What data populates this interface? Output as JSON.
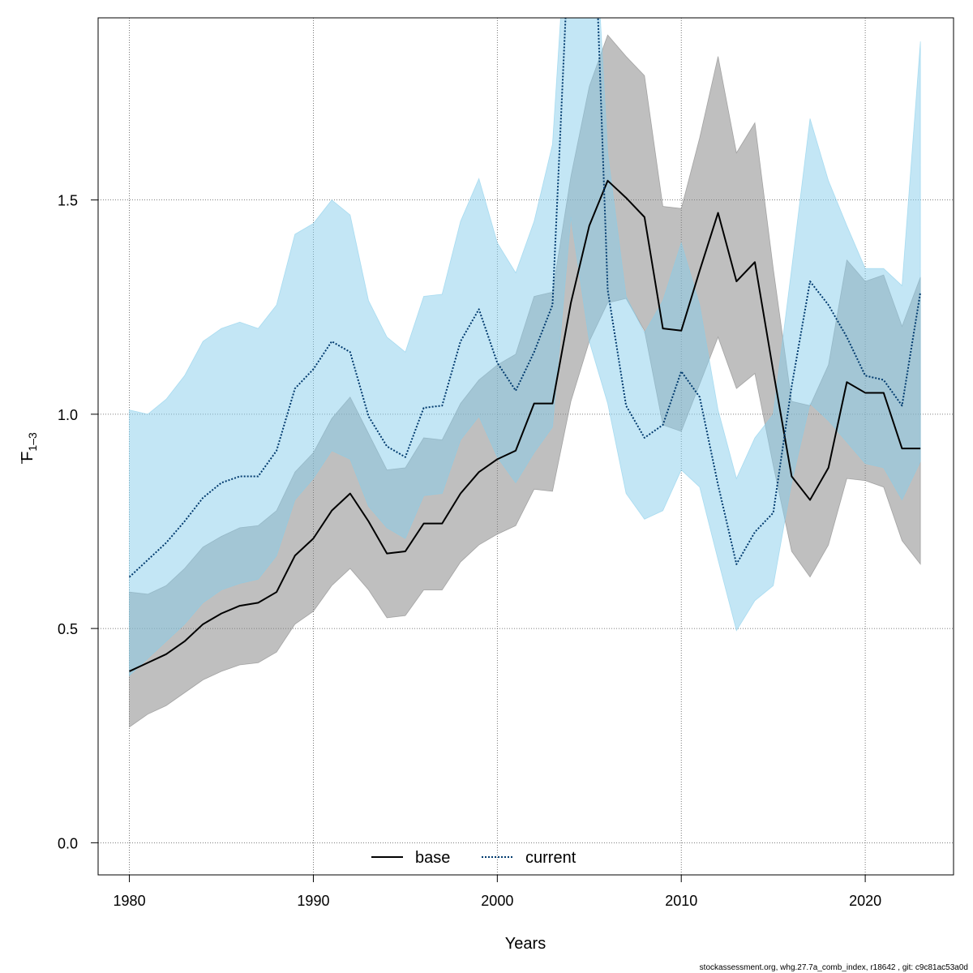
{
  "chart_data": {
    "type": "line",
    "xlabel": "Years",
    "ylabel": {
      "main": "F",
      "sub": "1–3"
    },
    "xlim": [
      1978.3,
      2024.8
    ],
    "ylim": [
      -0.075,
      1.925
    ],
    "xticks": [
      "1980",
      "1990",
      "2000",
      "2010",
      "2020"
    ],
    "yticks": [
      "0.0",
      "0.5",
      "1.0",
      "1.5"
    ],
    "grid": true,
    "legend_position": "bottom-center",
    "x": [
      1980,
      1981,
      1982,
      1983,
      1984,
      1985,
      1986,
      1987,
      1988,
      1989,
      1990,
      1991,
      1992,
      1993,
      1994,
      1995,
      1996,
      1997,
      1998,
      1999,
      2000,
      2001,
      2002,
      2003,
      2004,
      2005,
      2006,
      2007,
      2008,
      2009,
      2010,
      2011,
      2012,
      2013,
      2014,
      2015,
      2016,
      2017,
      2018,
      2019,
      2020,
      2021,
      2022,
      2023
    ],
    "series": [
      {
        "name": "base",
        "line_style": "solid",
        "color": "#000000",
        "band_color": "#808080",
        "values": [
          0.4,
          0.42,
          0.44,
          0.47,
          0.51,
          0.535,
          0.553,
          0.56,
          0.585,
          0.67,
          0.71,
          0.775,
          0.815,
          0.75,
          0.675,
          0.68,
          0.745,
          0.745,
          0.815,
          0.865,
          0.895,
          0.915,
          1.025,
          1.025,
          1.26,
          1.44,
          1.545,
          1.505,
          1.46,
          1.2,
          1.195,
          1.335,
          1.47,
          1.31,
          1.355,
          1.1,
          0.855,
          0.8,
          0.875,
          1.075,
          1.05,
          1.05,
          0.92,
          0.92
        ],
        "lower": [
          0.27,
          0.3,
          0.32,
          0.35,
          0.38,
          0.4,
          0.415,
          0.42,
          0.445,
          0.51,
          0.54,
          0.6,
          0.64,
          0.59,
          0.525,
          0.53,
          0.59,
          0.59,
          0.655,
          0.695,
          0.72,
          0.74,
          0.825,
          0.82,
          1.03,
          1.17,
          1.26,
          1.27,
          1.195,
          0.975,
          0.96,
          1.07,
          1.18,
          1.06,
          1.095,
          0.88,
          0.68,
          0.62,
          0.695,
          0.85,
          0.845,
          0.83,
          0.705,
          0.65
        ],
        "upper": [
          0.585,
          0.58,
          0.6,
          0.64,
          0.69,
          0.715,
          0.735,
          0.74,
          0.775,
          0.865,
          0.91,
          0.99,
          1.04,
          0.955,
          0.87,
          0.875,
          0.945,
          0.94,
          1.025,
          1.08,
          1.115,
          1.14,
          1.275,
          1.285,
          1.555,
          1.765,
          1.885,
          1.835,
          1.79,
          1.485,
          1.48,
          1.645,
          1.835,
          1.61,
          1.68,
          1.34,
          1.03,
          1.02,
          1.115,
          1.36,
          1.31,
          1.325,
          1.205,
          1.32
        ]
      },
      {
        "name": "current",
        "line_style": "dotted",
        "color": "#003a6e",
        "band_color": "#87ceeb",
        "values": [
          0.62,
          0.66,
          0.7,
          0.75,
          0.805,
          0.84,
          0.855,
          0.855,
          0.915,
          1.06,
          1.105,
          1.17,
          1.145,
          0.995,
          0.925,
          0.9,
          1.015,
          1.02,
          1.17,
          1.245,
          1.12,
          1.055,
          1.145,
          1.255,
          2.2,
          2.5,
          1.29,
          1.02,
          0.945,
          0.975,
          1.1,
          1.04,
          0.835,
          0.65,
          0.725,
          0.77,
          1.065,
          1.31,
          1.255,
          1.18,
          1.09,
          1.08,
          1.02,
          1.285
        ],
        "lower": [
          0.39,
          0.43,
          0.47,
          0.51,
          0.56,
          0.59,
          0.605,
          0.615,
          0.67,
          0.8,
          0.85,
          0.915,
          0.895,
          0.785,
          0.735,
          0.71,
          0.81,
          0.815,
          0.94,
          0.995,
          0.9,
          0.84,
          0.91,
          0.97,
          1.46,
          1.17,
          1.025,
          0.815,
          0.755,
          0.775,
          0.87,
          0.83,
          0.66,
          0.495,
          0.565,
          0.6,
          0.84,
          1.025,
          0.985,
          0.935,
          0.885,
          0.875,
          0.8,
          0.89
        ],
        "upper": [
          1.01,
          1.0,
          1.035,
          1.09,
          1.17,
          1.2,
          1.215,
          1.2,
          1.255,
          1.42,
          1.445,
          1.5,
          1.465,
          1.265,
          1.18,
          1.145,
          1.275,
          1.28,
          1.45,
          1.55,
          1.4,
          1.33,
          1.45,
          1.63,
          2.3,
          2.4,
          1.61,
          1.275,
          1.19,
          1.265,
          1.4,
          1.255,
          1.01,
          0.85,
          0.945,
          1.0,
          1.34,
          1.69,
          1.545,
          1.44,
          1.34,
          1.34,
          1.3,
          1.87
        ]
      }
    ]
  },
  "footer": "stockassessment.org, whg.27.7a_comb_index, r18642 , git: c9c81ac53a0d"
}
